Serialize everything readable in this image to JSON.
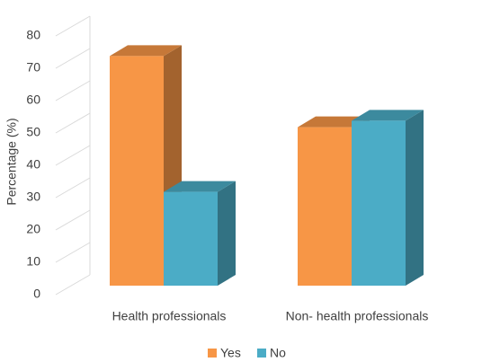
{
  "chart_data": {
    "type": "bar",
    "ylabel": "Percentage (%)",
    "categories": [
      "Health professionals",
      "Non- health professionals"
    ],
    "series": [
      {
        "name": "Yes",
        "color": "#f79646",
        "values": [
          71,
          49
        ]
      },
      {
        "name": "No",
        "color": "#4bacc6",
        "values": [
          29,
          51
        ]
      }
    ],
    "ylim": [
      0,
      80
    ],
    "yticks": [
      0,
      10,
      20,
      30,
      40,
      50,
      60,
      70,
      80
    ],
    "grid": true,
    "legend": "bottom"
  }
}
